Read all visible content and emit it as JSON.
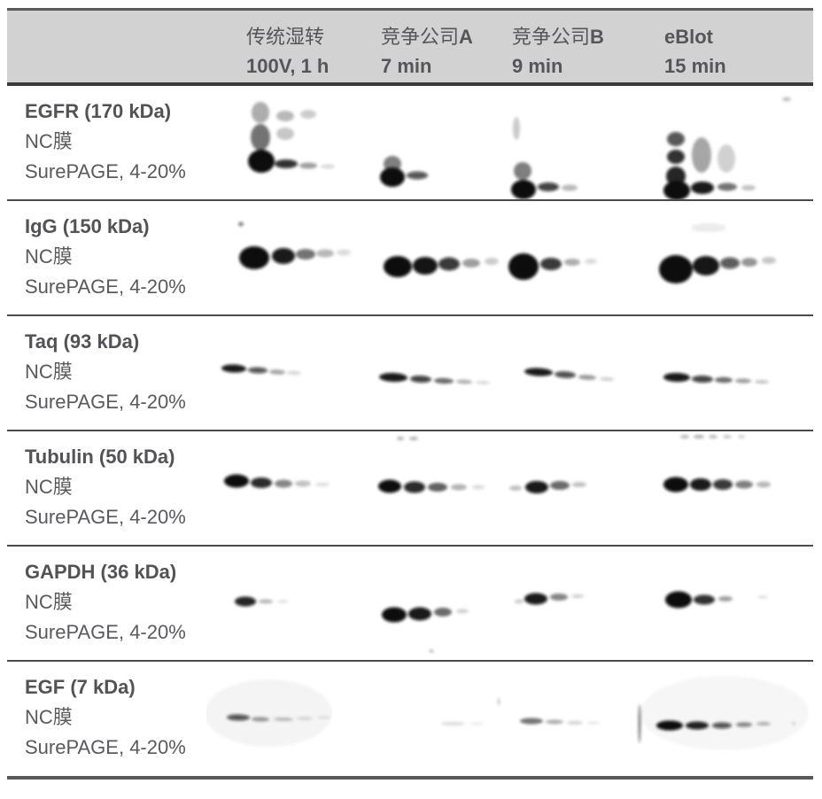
{
  "table": {
    "line_color": "#59595b",
    "header": {
      "bg": "#d2d2d3",
      "text_color": "#55555a",
      "columns": [
        {
          "name_zh": "传统湿转",
          "name_en": "",
          "time": "100V, 1 h"
        },
        {
          "name_zh": "竞争公司",
          "name_en": "A",
          "time": "7 min"
        },
        {
          "name_zh": "竞争公司",
          "name_en": "B",
          "time": "9 min"
        },
        {
          "name_zh": "",
          "name_en": "eBlot",
          "time": "15 min"
        }
      ]
    },
    "rows": [
      {
        "protein": "EGFR (170 kDa)",
        "membrane": "NC膜",
        "gel": "SurePAGE, 4-20%",
        "bands": [
          [
            61,
            30,
            10,
            12,
            0.32
          ],
          [
            61,
            58,
            11,
            15,
            0.55
          ],
          [
            62,
            85,
            15,
            13,
            1
          ],
          [
            89,
            34,
            10,
            6,
            0.28
          ],
          [
            89,
            54,
            10,
            7,
            0.22
          ],
          [
            90,
            88,
            13,
            5,
            0.85
          ],
          [
            115,
            32,
            9,
            5,
            0.2
          ],
          [
            115,
            90,
            10,
            3.5,
            0.38
          ],
          [
            137,
            91,
            8,
            2.5,
            0.15
          ],
          [
            210,
            88,
            10,
            9,
            0.5
          ],
          [
            210,
            103,
            14,
            11,
            1
          ],
          [
            238,
            101,
            12,
            4.5,
            0.7
          ],
          [
            350,
            48,
            4,
            13,
            0.2
          ],
          [
            357,
            96,
            10,
            10,
            0.5
          ],
          [
            358,
            117,
            14,
            11,
            1
          ],
          [
            386,
            114,
            12,
            5,
            0.78
          ],
          [
            410,
            115,
            9,
            3.5,
            0.28
          ],
          [
            530,
            60,
            10,
            8,
            0.7
          ],
          [
            530,
            80,
            10,
            8,
            0.85
          ],
          [
            530,
            102,
            11,
            11,
            0.9
          ],
          [
            531,
            118,
            15,
            11,
            1
          ],
          [
            559,
            78,
            11,
            20,
            0.35
          ],
          [
            560,
            115,
            13,
            7,
            0.95
          ],
          [
            587,
            82,
            10,
            16,
            0.18
          ],
          [
            588,
            114,
            11,
            4.5,
            0.55
          ],
          [
            612,
            115,
            8,
            3,
            0.25
          ],
          [
            655,
            15,
            5,
            2,
            0.28
          ]
        ]
      },
      {
        "protein": "IgG (150 kDa)",
        "membrane": "NC膜",
        "gel": "SurePAGE, 4-20%",
        "bands": [
          [
            39,
            26,
            3,
            2.5,
            0.5
          ],
          [
            54,
            64,
            17,
            13,
            1
          ],
          [
            87,
            62,
            13,
            9,
            0.95
          ],
          [
            112,
            60,
            11,
            6,
            0.55
          ],
          [
            134,
            59,
            10,
            4.5,
            0.28
          ],
          [
            155,
            58,
            8,
            3.5,
            0.14
          ],
          [
            216,
            74,
            16,
            12,
            1
          ],
          [
            247,
            73,
            14,
            10,
            0.97
          ],
          [
            274,
            71,
            12,
            7.5,
            0.82
          ],
          [
            299,
            70,
            10,
            5,
            0.38
          ],
          [
            322,
            68,
            8,
            4,
            0.2
          ],
          [
            358,
            74,
            17,
            15,
            1
          ],
          [
            389,
            71,
            12,
            7,
            0.82
          ],
          [
            413,
            69,
            9,
            4,
            0.32
          ],
          [
            434,
            68,
            7,
            3,
            0.14
          ],
          [
            567,
            30,
            20,
            5,
            0.08
          ],
          [
            530,
            77,
            19,
            16,
            1
          ],
          [
            564,
            73,
            15,
            11,
            0.96
          ],
          [
            591,
            70,
            11,
            6.5,
            0.68
          ],
          [
            613,
            69,
            9,
            5,
            0.42
          ],
          [
            635,
            67,
            8,
            4,
            0.22
          ]
        ]
      },
      {
        "protein": "Taq (93 kDa)",
        "membrane": "NC膜",
        "gel": "SurePAGE, 4-20%",
        "bands": [
          [
            31,
            59,
            14,
            4.5,
            0.95,
            2
          ],
          [
            58,
            61,
            11,
            3.5,
            0.7,
            2
          ],
          [
            80,
            63,
            9,
            2.8,
            0.35,
            2
          ],
          [
            99,
            64,
            8,
            2.2,
            0.16,
            2
          ],
          [
            211,
            69,
            16,
            5,
            0.95,
            2
          ],
          [
            242,
            71,
            12,
            4,
            0.78,
            2
          ],
          [
            268,
            73,
            11,
            3.2,
            0.58,
            2
          ],
          [
            291,
            74,
            9,
            2.5,
            0.3,
            2
          ],
          [
            312,
            75,
            8,
            2,
            0.15,
            2
          ],
          [
            375,
            63,
            16,
            4.5,
            0.95,
            3
          ],
          [
            405,
            66,
            12,
            3.8,
            0.72,
            3
          ],
          [
            430,
            69,
            10,
            2.8,
            0.4,
            3
          ],
          [
            452,
            71,
            8,
            2.2,
            0.18,
            3
          ],
          [
            531,
            69,
            15,
            5,
            0.95,
            1
          ],
          [
            560,
            71,
            12,
            4,
            0.78,
            1
          ],
          [
            584,
            72,
            10,
            3.2,
            0.58,
            1
          ],
          [
            606,
            73,
            9,
            2.6,
            0.38,
            1
          ],
          [
            627,
            74,
            8,
            2.2,
            0.22,
            1
          ]
        ]
      },
      {
        "protein": "Tubulin (50 kDa)",
        "membrane": "NC膜",
        "gel": "SurePAGE, 4-20%",
        "bands": [
          [
            34,
            56,
            14,
            7.5,
            1
          ],
          [
            62,
            58,
            12,
            6,
            0.88
          ],
          [
            87,
            59,
            10,
            4.5,
            0.48
          ],
          [
            109,
            59,
            9,
            3.5,
            0.24
          ],
          [
            131,
            60,
            8,
            2.5,
            0.12
          ],
          [
            219,
            8,
            4,
            2,
            0.3
          ],
          [
            234,
            8,
            5,
            2,
            0.3
          ],
          [
            207,
            62,
            13,
            7.5,
            1
          ],
          [
            235,
            63,
            12,
            6.5,
            0.88
          ],
          [
            261,
            63,
            11,
            5,
            0.62
          ],
          [
            285,
            63,
            9,
            3.5,
            0.3
          ],
          [
            307,
            63,
            7,
            2.5,
            0.14
          ],
          [
            349,
            64,
            7,
            3,
            0.25
          ],
          [
            373,
            63,
            13,
            7,
            0.95
          ],
          [
            399,
            61,
            11,
            5,
            0.58
          ],
          [
            421,
            60,
            8,
            3,
            0.24
          ],
          [
            540,
            6,
            5,
            2,
            0.28
          ],
          [
            556,
            6,
            6,
            2,
            0.32
          ],
          [
            572,
            6,
            5,
            2,
            0.28
          ],
          [
            588,
            6,
            5,
            2,
            0.22
          ],
          [
            604,
            6,
            4,
            2,
            0.18
          ],
          [
            530,
            60,
            14,
            8.5,
            1
          ],
          [
            558,
            60,
            12,
            7,
            0.95
          ],
          [
            583,
            60,
            11,
            6,
            0.82
          ],
          [
            607,
            60,
            10,
            4.5,
            0.5
          ],
          [
            629,
            60,
            8,
            3.5,
            0.28
          ]
        ]
      },
      {
        "protein": "GAPDH (36 kDa)",
        "membrane": "NC膜",
        "gel": "SurePAGE, 4-20%",
        "bands": [
          [
            44,
            62,
            12,
            5.5,
            0.9
          ],
          [
            67,
            62,
            8,
            2.5,
            0.28
          ],
          [
            86,
            62,
            6,
            1.8,
            0.12
          ],
          [
            212,
            77,
            14,
            8.5,
            1
          ],
          [
            241,
            76,
            13,
            7.5,
            0.95
          ],
          [
            267,
            74,
            10,
            5,
            0.58
          ],
          [
            289,
            73,
            7,
            2.5,
            0.18
          ],
          [
            353,
            62,
            5,
            2.5,
            0.2
          ],
          [
            372,
            59,
            13,
            6.5,
            0.95
          ],
          [
            398,
            57,
            10,
            4,
            0.48
          ],
          [
            419,
            56,
            7,
            2.2,
            0.18
          ],
          [
            533,
            60,
            15,
            9.5,
            1
          ],
          [
            562,
            60,
            12,
            5.5,
            0.85
          ],
          [
            586,
            59,
            8,
            3,
            0.38
          ],
          [
            628,
            57,
            6,
            1.8,
            0.12
          ],
          [
            254,
            118,
            2.5,
            1.5,
            0.35
          ]
        ]
      },
      {
        "protein": "EGF (7 kDa)",
        "membrane": "NC膜",
        "gel": "SurePAGE, 4-20%",
        "bands": [
          [
            70,
            58,
            72,
            38,
            0.045
          ],
          [
            585,
            58,
            95,
            42,
            0.035
          ],
          [
            36,
            63,
            13,
            3.5,
            0.7,
            1
          ],
          [
            61,
            65,
            10,
            2.5,
            0.4,
            1
          ],
          [
            87,
            65,
            11,
            2,
            0.25,
            1
          ],
          [
            111,
            64,
            9,
            1.8,
            0.15,
            1
          ],
          [
            133,
            63,
            8,
            1.5,
            0.1,
            1
          ],
          [
            278,
            70,
            14,
            2,
            0.14
          ],
          [
            305,
            70,
            8,
            1.5,
            0.08
          ],
          [
            330,
            45,
            1.5,
            4,
            0.22
          ],
          [
            367,
            67,
            13,
            3.5,
            0.55
          ],
          [
            393,
            68,
            10,
            2.5,
            0.32
          ],
          [
            416,
            69,
            9,
            2,
            0.18
          ],
          [
            437,
            69,
            7,
            1.5,
            0.1
          ],
          [
            489,
            70,
            1.5,
            22,
            0.5
          ],
          [
            523,
            72,
            15,
            5.5,
            1
          ],
          [
            554,
            72,
            13,
            4.5,
            0.92
          ],
          [
            582,
            72,
            11,
            3.5,
            0.7
          ],
          [
            607,
            71,
            9,
            2.8,
            0.45
          ],
          [
            629,
            70,
            8,
            2.2,
            0.28
          ],
          [
            663,
            70,
            2,
            1.5,
            0.2
          ]
        ]
      }
    ]
  }
}
